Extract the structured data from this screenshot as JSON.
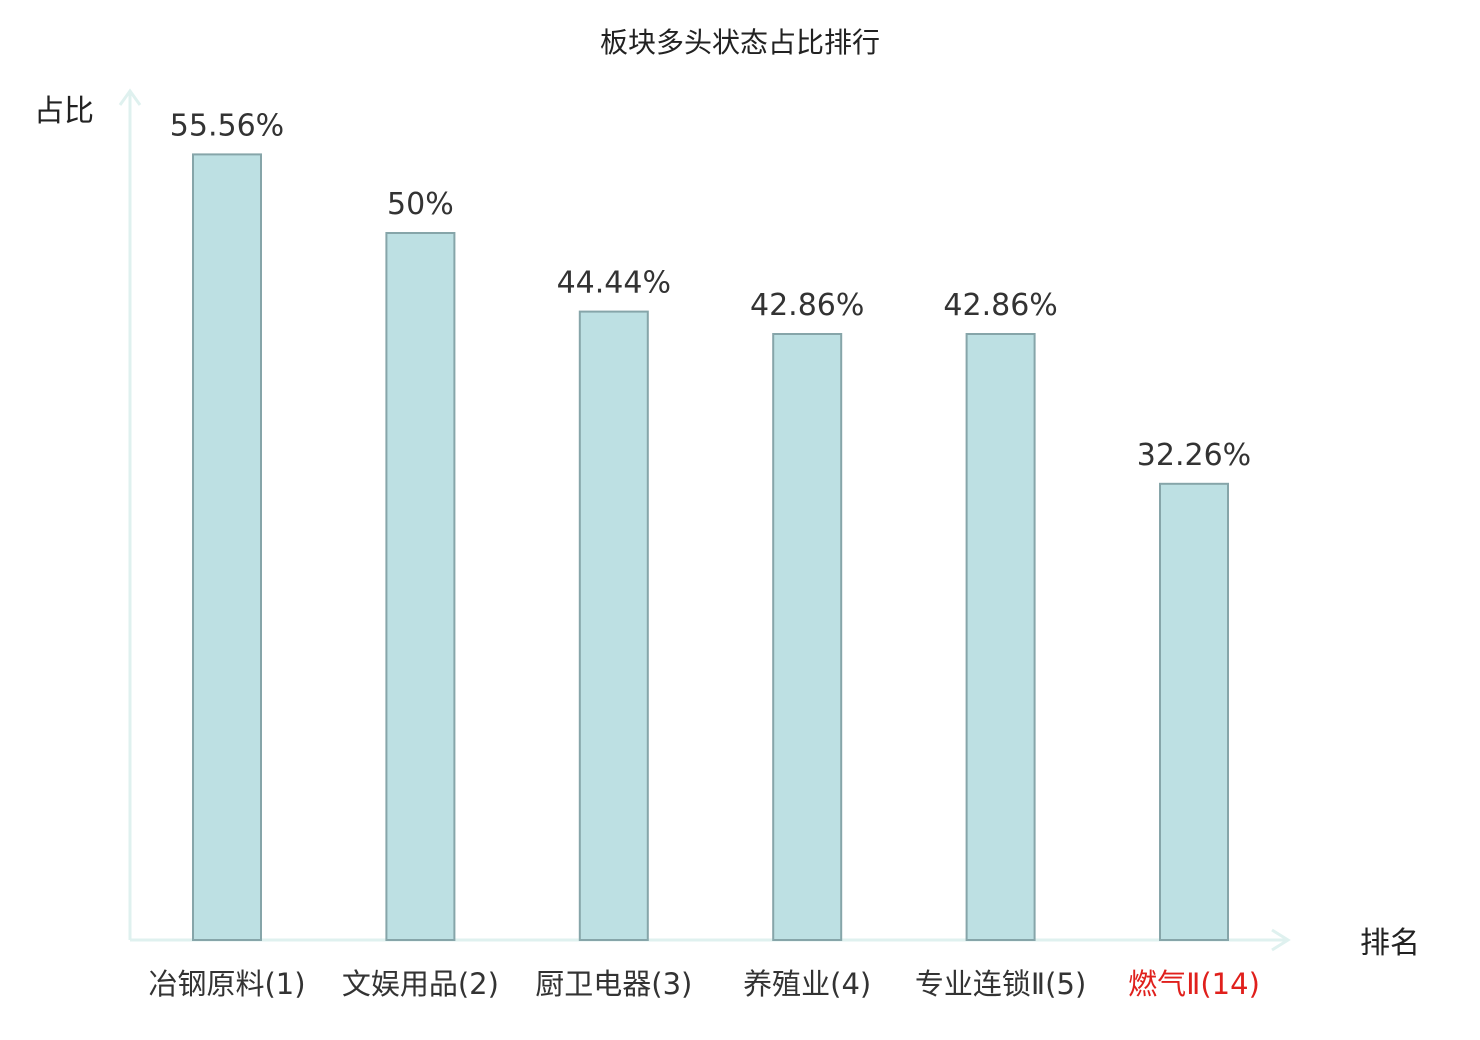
{
  "chart_data": {
    "type": "bar",
    "title": "板块多头状态占比排行",
    "ylabel": "占比",
    "xlabel": "排名",
    "unit": "%",
    "categories": [
      "冶钢原料(1)",
      "文娱用品(2)",
      "厨卫电器(3)",
      "养殖业(4)",
      "专业连锁Ⅱ(5)",
      "燃气Ⅱ(14)"
    ],
    "value_labels": [
      "55.56%",
      "50%",
      "44.44%",
      "42.86%",
      "42.86%",
      "32.26%"
    ],
    "values": [
      55.56,
      50,
      44.44,
      42.86,
      42.86,
      32.26
    ],
    "highlight_index": 5,
    "ylim": [
      0,
      60
    ],
    "grid": false,
    "legend": "none"
  },
  "colors": {
    "bar_fill": "#bde0e3",
    "bar_stroke": "#86a5a9",
    "axis": "#dff1ef",
    "text": "#333333",
    "highlight_text": "#e0201c"
  }
}
